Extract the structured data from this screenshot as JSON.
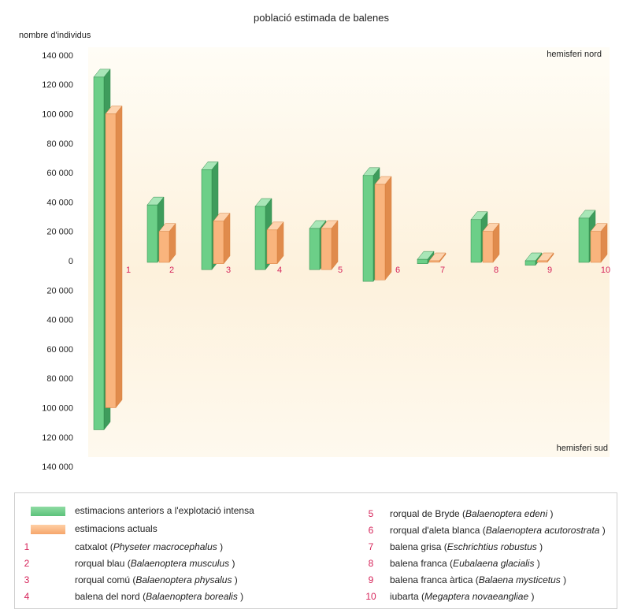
{
  "chart_data": {
    "type": "bar",
    "title": "població estimada de balenes",
    "ylabel": "nombre d'individus",
    "region_labels": {
      "north": "hemisferi nord",
      "south": "hemisferi sud"
    },
    "y_ticks_north": [
      "140 000",
      "120 000",
      "100 000",
      "80 000",
      "60 000",
      "40 000",
      "20 000",
      "0"
    ],
    "y_ticks_south": [
      "20 000",
      "40 000",
      "60 000",
      "80 000",
      "100 000",
      "120 000",
      "140 000"
    ],
    "ylim": [
      -140000,
      140000
    ],
    "categories": [
      "1",
      "2",
      "3",
      "4",
      "5",
      "6",
      "7",
      "8",
      "9",
      "10"
    ],
    "series": [
      {
        "name": "estimacions anteriors a l'explotació intensa",
        "north": [
          125000,
          38000,
          62000,
          37000,
          22000,
          58000,
          1000,
          28000,
          0,
          29000
        ],
        "south": [
          115000,
          0,
          6000,
          6000,
          6000,
          14000,
          2000,
          0,
          3000,
          0
        ]
      },
      {
        "name": "estimacions actuals",
        "north": [
          100000,
          20000,
          27000,
          21000,
          22000,
          52000,
          0,
          20000,
          0,
          20000
        ],
        "south": [
          100000,
          0,
          2000,
          2000,
          6000,
          13000,
          1000,
          0,
          1000,
          0
        ]
      }
    ],
    "colors": {
      "before": "#6ccf88",
      "current": "#f9b47d",
      "category_numbers": "#d6245a"
    }
  },
  "legend": {
    "series": [
      "estimacions anteriors a l'explotació intensa",
      "estimacions actuals"
    ],
    "species": [
      {
        "num": "1",
        "common": "catxalot",
        "latin": "Physeter macrocephalus"
      },
      {
        "num": "2",
        "common": "rorqual blau",
        "latin": "Balaenoptera musculus"
      },
      {
        "num": "3",
        "common": "rorqual comú",
        "latin": "Balaenoptera physalus"
      },
      {
        "num": "4",
        "common": "balena del nord",
        "latin": "Balaenoptera borealis"
      },
      {
        "num": "5",
        "common": "rorqual de Bryde",
        "latin": "Balaenoptera edeni"
      },
      {
        "num": "6",
        "common": "rorqual d'aleta blanca",
        "latin": "Balaenoptera acutorostrata"
      },
      {
        "num": "7",
        "common": "balena grisa",
        "latin": "Eschrichtius robustus"
      },
      {
        "num": "8",
        "common": "balena franca",
        "latin": "Eubalaena glacialis"
      },
      {
        "num": "9",
        "common": "balena franca àrtica",
        "latin": "Balaena mysticetus"
      },
      {
        "num": "10",
        "common": "iubarta",
        "latin": "Megaptera novaeangliae"
      }
    ]
  }
}
